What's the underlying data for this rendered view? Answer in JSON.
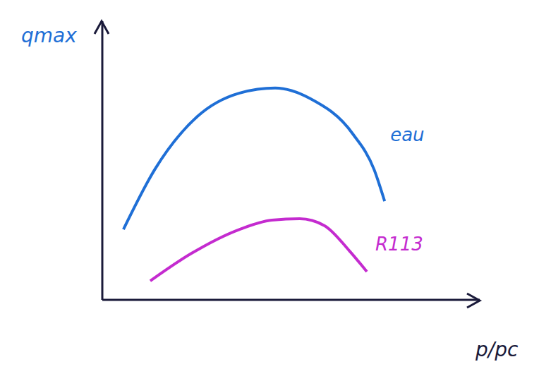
{
  "chart_data": {
    "type": "line",
    "x_label": "p/pc",
    "y_label": "qmax",
    "xlim": [
      0,
      1
    ],
    "ylim": [
      0,
      1
    ],
    "tick_labels": false,
    "grid": false,
    "series": [
      {
        "name": "eau",
        "color": "#1f6fd6",
        "x": [
          0.056,
          0.14,
          0.252,
          0.364,
          0.458,
          0.551,
          0.664,
          0.72,
          0.748
        ],
        "values": [
          0.253,
          0.47,
          0.658,
          0.742,
          0.76,
          0.722,
          0.595,
          0.468,
          0.354
        ]
      },
      {
        "name": "R113",
        "color": "#c42bcf",
        "x": [
          0.127,
          0.234,
          0.364,
          0.449,
          0.523,
          0.589,
          0.654,
          0.701
        ],
        "values": [
          0.068,
          0.165,
          0.253,
          0.286,
          0.291,
          0.266,
          0.177,
          0.101
        ]
      }
    ]
  }
}
